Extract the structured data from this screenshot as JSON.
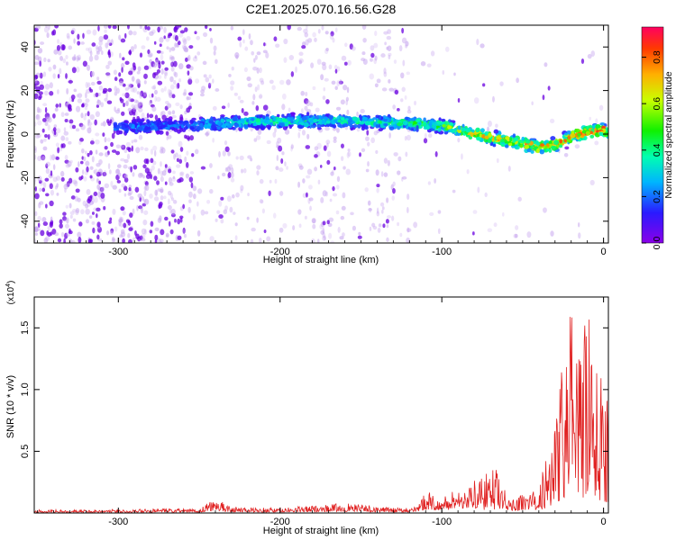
{
  "title": "C2E1.2025.070.16.56.G28",
  "colors": {
    "snr_line": "#e02020",
    "dot_light": "#c7a6ef",
    "dot_dark": "#6a00e0",
    "axis": "#000000"
  },
  "chart_data": [
    {
      "type": "heatmap",
      "name": "spectrogram",
      "xlabel": "Height of straight line (km)",
      "ylabel": "Frequency (Hz)",
      "xlim": [
        -352,
        3
      ],
      "ylim": [
        -50,
        50
      ],
      "x_ticks": [
        -300,
        -200,
        -100,
        0
      ],
      "x_tick_labels": [
        "-300",
        "-200",
        "-100",
        "0"
      ],
      "y_ticks": [
        -40,
        -20,
        0,
        20,
        40
      ],
      "y_tick_labels": [
        "-40",
        "-20",
        "0",
        "20",
        "40"
      ],
      "colorbar": {
        "label": "Normalized spectral amplitude",
        "range": [
          0,
          0.93
        ],
        "ticks": [
          0,
          0.2,
          0.4,
          0.6,
          0.8
        ],
        "tick_labels": [
          "0.0",
          "0.2",
          "0.4",
          "0.6",
          "0.8"
        ],
        "colormap": "rainbow (violet to red)"
      },
      "ridge": {
        "x": [
          -302,
          -260,
          -240,
          -200,
          -160,
          -120,
          -100,
          -80,
          -60,
          -40,
          -30,
          -20,
          -10,
          0,
          3
        ],
        "freq": [
          3,
          4,
          5,
          6,
          6,
          5,
          4,
          0,
          -3,
          -6,
          -5,
          -1,
          1,
          2,
          0
        ],
        "peak_amplitude": [
          0.25,
          0.25,
          0.35,
          0.45,
          0.4,
          0.5,
          0.55,
          0.75,
          0.8,
          0.85,
          0.8,
          0.85,
          0.85,
          0.9,
          0.8
        ]
      },
      "background_regions": [
        {
          "x": [
            -352,
            -255
          ],
          "density": "high"
        },
        {
          "x": [
            -255,
            -135
          ],
          "density": "medium"
        },
        {
          "x": [
            -135,
            -120
          ],
          "density": "low"
        },
        {
          "x": [
            -120,
            3
          ],
          "density": "very low"
        }
      ]
    },
    {
      "type": "line",
      "name": "snr",
      "xlabel": "Height of straight line (km)",
      "ylabel": "SNR (10 * v/v)",
      "y_scale_label": "(x10",
      "y_scale_exp": "4",
      "y_scale_close": ")",
      "xlim": [
        -352,
        3
      ],
      "ylim": [
        0,
        17500
      ],
      "x_ticks": [
        -300,
        -200,
        -100,
        0
      ],
      "x_tick_labels": [
        "-300",
        "-200",
        "-100",
        "0"
      ],
      "y_ticks": [
        5000,
        10000,
        15000
      ],
      "y_tick_labels": [
        "0.5",
        "1.0",
        "1.5"
      ],
      "envelope": {
        "x": [
          -352,
          -300,
          -250,
          -240,
          -230,
          -200,
          -160,
          -130,
          -115,
          -110,
          -100,
          -90,
          -80,
          -70,
          -66,
          -60,
          -55,
          -50,
          -40,
          -35,
          -30,
          -25,
          -20,
          -15,
          -10,
          -5,
          0,
          3
        ],
        "y": [
          250,
          300,
          350,
          1300,
          500,
          400,
          800,
          400,
          500,
          1800,
          1200,
          2200,
          2600,
          3400,
          3700,
          1500,
          1200,
          1600,
          1900,
          5500,
          8500,
          13000,
          16800,
          14000,
          16500,
          13000,
          12000,
          10000
        ]
      }
    }
  ]
}
